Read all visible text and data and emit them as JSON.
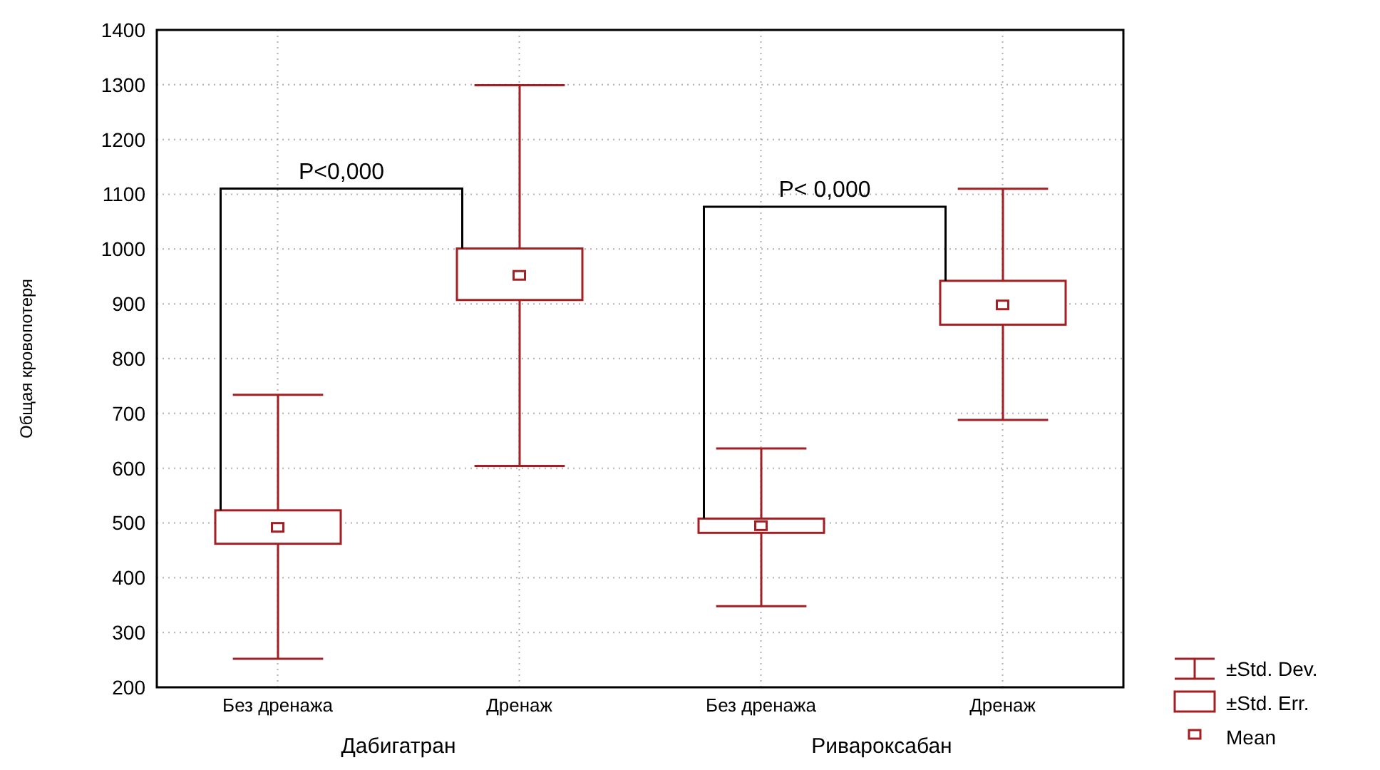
{
  "chart_data": {
    "type": "box",
    "ylabel": "Общая кровопотеря",
    "categories": [
      "Без дренажа",
      "Дренаж",
      "Без дренажа",
      "Дренаж"
    ],
    "color": "#a31f24",
    "boxes": [
      {
        "low": 252,
        "q1": 462,
        "q3": 523,
        "high": 734,
        "mean": 492
      },
      {
        "low": 604,
        "q1": 907,
        "q3": 1001,
        "high": 1299,
        "mean": 952
      },
      {
        "low": 348,
        "q1": 482,
        "q3": 508,
        "high": 636,
        "mean": 495
      },
      {
        "low": 688,
        "q1": 862,
        "q3": 942,
        "high": 1110,
        "mean": 898
      }
    ],
    "ylim": [
      200,
      1400
    ],
    "yticks": [
      200,
      300,
      400,
      500,
      600,
      700,
      800,
      900,
      1000,
      1100,
      1200,
      1300,
      1400
    ],
    "grid": true,
    "annotations": [
      "P<0,000",
      "P< 0,000",
      "Дабигатран",
      "Ривароксабан",
      "±Std. Dev.",
      "±Std. Err.",
      "Mean"
    ]
  }
}
